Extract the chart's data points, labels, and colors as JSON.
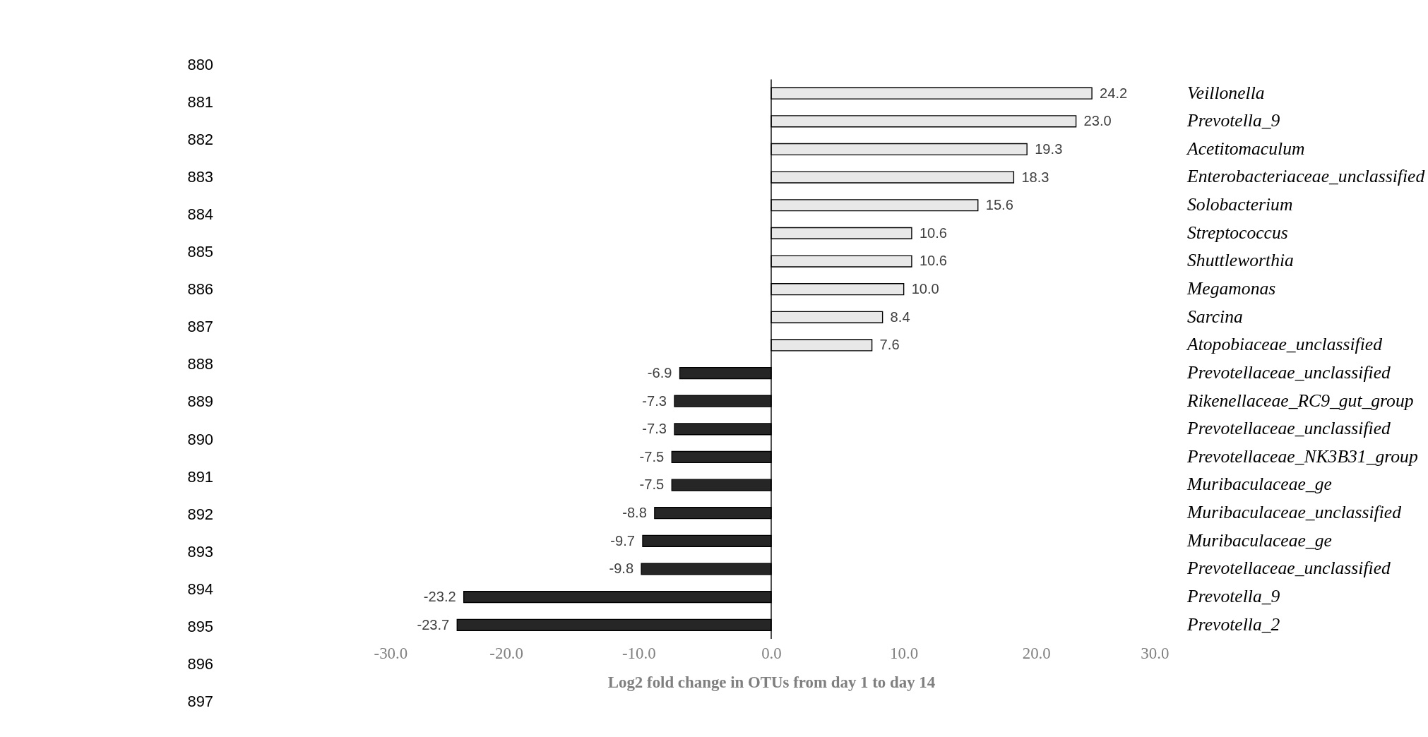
{
  "chart_data": {
    "type": "bar",
    "orientation": "horizontal",
    "xlabel": "Log2 fold change in OTUs from day 1 to day 14",
    "categories": [
      "Veillonella",
      "Prevotella_9",
      "Acetitomaculum",
      "Enterobacteriaceae_unclassified",
      "Solobacterium",
      "Streptococcus",
      "Shuttleworthia",
      "Megamonas",
      "Sarcina",
      "Atopobiaceae_unclassified",
      "Prevotellaceae_unclassified",
      "Rikenellaceae_RC9_gut_group",
      "Prevotellaceae_unclassified",
      "Prevotellaceae_NK3B31_group",
      "Muribaculaceae_ge",
      "Muribaculaceae_unclassified",
      "Muribaculaceae_ge",
      "Prevotellaceae_unclassified",
      "Prevotella_9",
      "Prevotella_2"
    ],
    "values": [
      24.2,
      23.0,
      19.3,
      18.3,
      15.6,
      10.6,
      10.6,
      10.0,
      8.4,
      7.6,
      -6.9,
      -7.3,
      -7.3,
      -7.5,
      -7.5,
      -8.8,
      -9.7,
      -9.8,
      -23.2,
      -23.7
    ],
    "value_labels": [
      "24.2",
      "23.0",
      "19.3",
      "18.3",
      "15.6",
      "10.6",
      "10.6",
      "10.0",
      "8.4",
      "7.6",
      "-6.9",
      "-7.3",
      "-7.3",
      "-7.5",
      "-7.5",
      "-8.8",
      "-9.7",
      "-9.8",
      "-23.2",
      "-23.7"
    ],
    "colors": [
      "#e8e8e8",
      "#e8e8e8",
      "#e8e8e8",
      "#e8e8e8",
      "#e8e8e8",
      "#e8e8e8",
      "#e8e8e8",
      "#e8e8e8",
      "#e8e8e8",
      "#e8e8e8",
      "#262626",
      "#262626",
      "#262626",
      "#262626",
      "#262626",
      "#262626",
      "#262626",
      "#262626",
      "#262626",
      "#262626"
    ],
    "xlim": [
      -30,
      30
    ],
    "xticks": [
      {
        "value": -30,
        "label": "-30.0"
      },
      {
        "value": -20,
        "label": "-20.0"
      },
      {
        "value": -10,
        "label": "-10.0"
      },
      {
        "value": 0,
        "label": "0.0"
      },
      {
        "value": 10,
        "label": "10.0"
      },
      {
        "value": 20,
        "label": "20.0"
      },
      {
        "value": 30,
        "label": "30.0"
      }
    ],
    "grid": false,
    "ref_lines": [
      {
        "axis": "x",
        "value": 0,
        "color": "#000000",
        "line_style": "solid"
      }
    ],
    "annotations": [
      "880",
      "881",
      "882",
      "883",
      "884",
      "885",
      "886",
      "887",
      "888",
      "889",
      "890",
      "891",
      "892",
      "893",
      "894",
      "895",
      "896",
      "897"
    ]
  }
}
